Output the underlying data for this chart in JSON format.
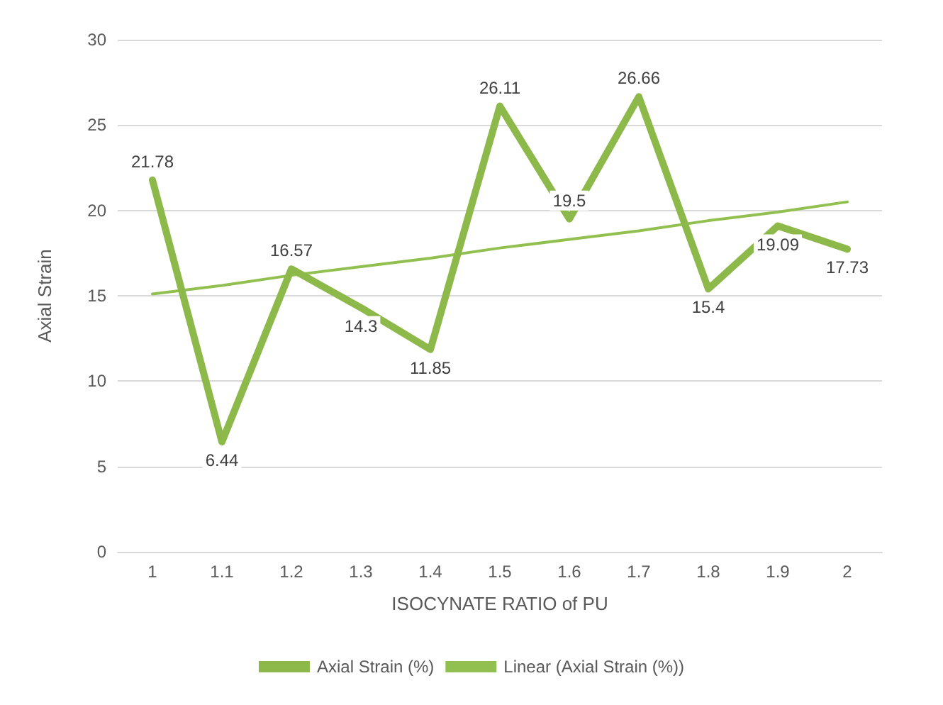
{
  "chart_data": {
    "type": "line",
    "xlabel": "ISOCYNATE RATIO of PU",
    "ylabel": "Axial Strain",
    "categories": [
      "1",
      "1.1",
      "1.2",
      "1.3",
      "1.4",
      "1.5",
      "1.6",
      "1.7",
      "1.8",
      "1.9",
      "2"
    ],
    "series": [
      {
        "name": "Axial Strain (%)",
        "color": "#8db84a",
        "values": [
          21.78,
          6.44,
          16.57,
          14.3,
          11.85,
          26.11,
          19.5,
          26.66,
          15.4,
          19.09,
          17.73
        ],
        "data_labels": true
      },
      {
        "name": "Linear (Axial Strain (%))",
        "color": "#92c050",
        "values": [
          15.1,
          15.6,
          16.2,
          16.7,
          17.2,
          17.8,
          18.3,
          18.8,
          19.4,
          19.9,
          20.5
        ]
      }
    ],
    "ylim": [
      0,
      30
    ],
    "yticks": [
      0,
      5,
      10,
      15,
      20,
      25,
      30
    ],
    "grid": "y",
    "legend": "bottom",
    "marker": "none",
    "line_style": "solid"
  }
}
